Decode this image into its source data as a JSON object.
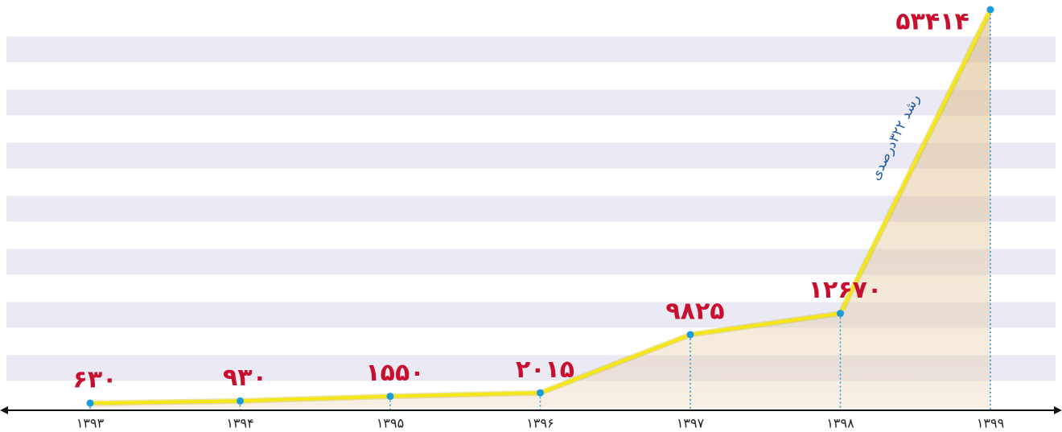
{
  "chart_data": {
    "type": "line",
    "categories": [
      "۱۳۹۳",
      "۱۳۹۴",
      "۱۳۹۵",
      "۱۳۹۶",
      "۱۳۹۷",
      "۱۳۹۸",
      "۱۳۹۹"
    ],
    "values": [
      630,
      930,
      1550,
      2015,
      9825,
      12670,
      53414
    ],
    "value_labels": [
      "۶۳۰",
      "۹۳۰",
      "۱۵۵۰",
      "۲۰۱۵",
      "۹۸۲۵",
      "۱۲۶۷۰",
      "۵۳۴۱۴"
    ],
    "color": "#f5e617",
    "annotation": "رشد ۳۲۲درصدی"
  }
}
